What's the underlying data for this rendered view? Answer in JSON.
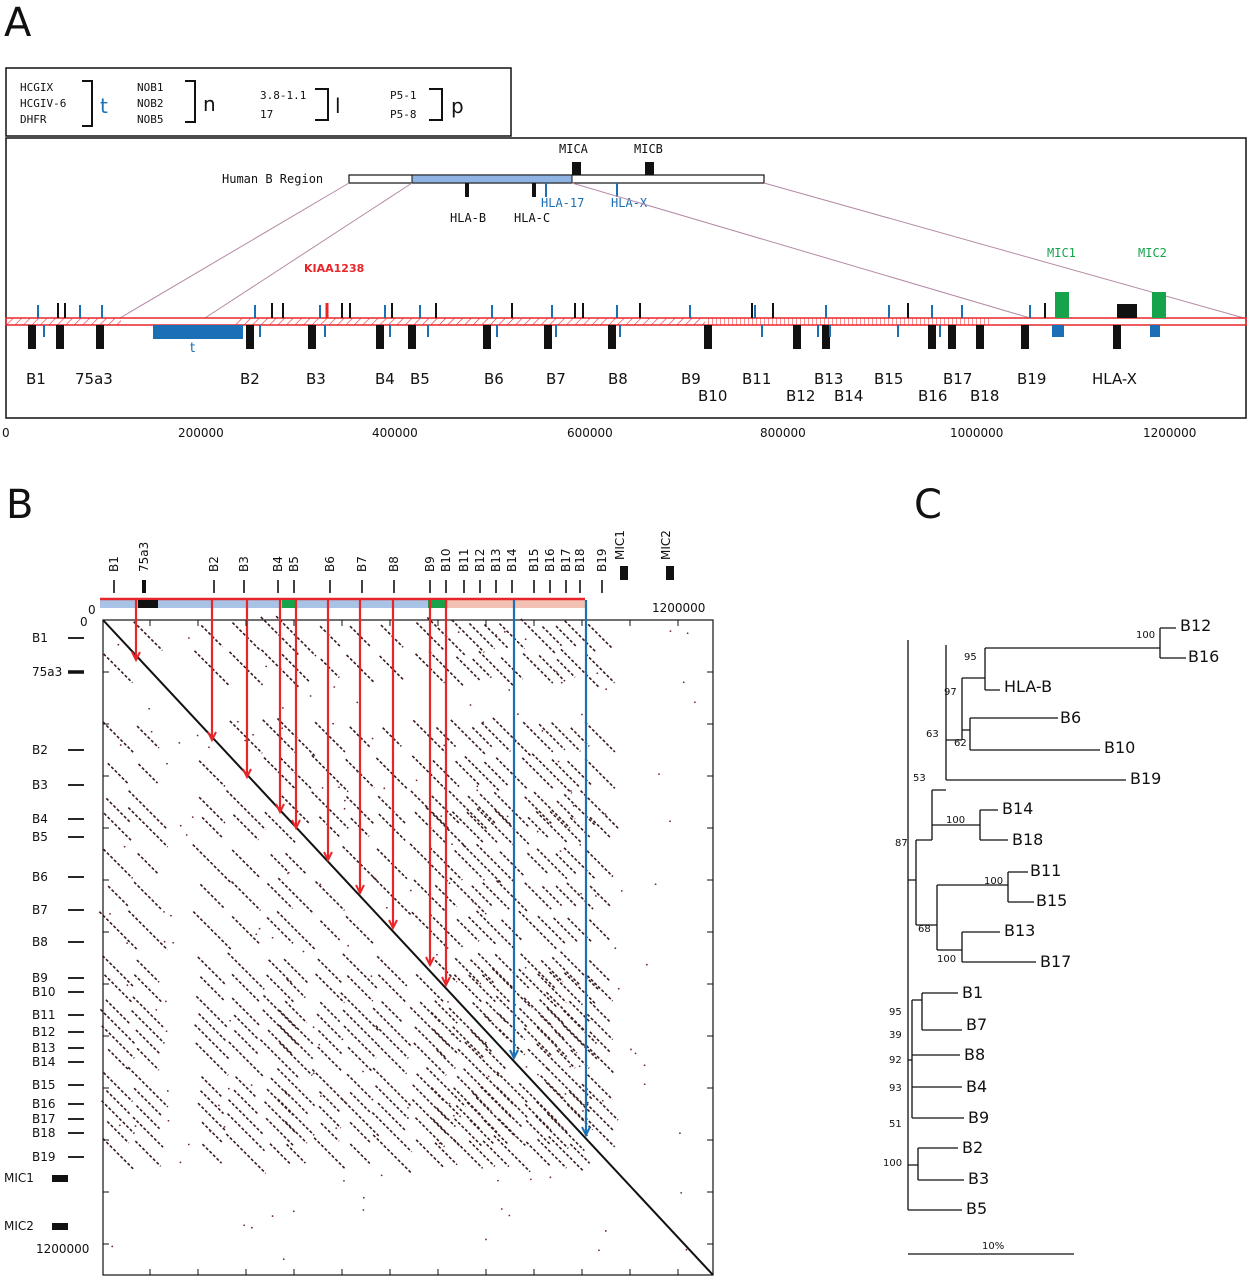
{
  "panels": {
    "a": "A",
    "b": "B",
    "c": "C"
  },
  "colors": {
    "t": "#1a6fb5",
    "red": "#e8262a",
    "green": "#16a34a",
    "black": "#111111",
    "pink": "#c9a6b9",
    "dotplot_blue": "#1a6fb5"
  },
  "legend": {
    "t_items": [
      "HCGIX",
      "HCGIV-6",
      "DHFR"
    ],
    "t_symbol": "t",
    "n_items": [
      "NOB1",
      "NOB2",
      "NOB5"
    ],
    "n_symbol": "n",
    "l_items": [
      "3.8-1.1",
      "17"
    ],
    "l_symbol": "l",
    "p_items": [
      "P5-1",
      "P5-8"
    ],
    "p_symbol": "p"
  },
  "human_region": {
    "title": "Human B Region",
    "genes_top": [
      "MICA",
      "MICB"
    ],
    "genes_black": [
      "HLA-B",
      "HLA-C"
    ],
    "genes_blue": [
      "HLA-17",
      "HLA-X"
    ]
  },
  "chicken_map": {
    "kiaa": "KIAA1238",
    "mic": [
      "MIC1",
      "MIC2"
    ],
    "blocks_row1": [
      "B1",
      "75a3",
      "B2",
      "B3",
      "B4",
      "B5",
      "B6",
      "B7",
      "B8",
      "B9",
      "B11",
      "B13",
      "B15",
      "B17",
      "B19",
      "HLA-X"
    ],
    "blocks_row2": [
      "B10",
      "B12",
      "B14",
      "B16",
      "B18"
    ],
    "t_label": "t"
  },
  "axis_a": {
    "ticks": [
      "0",
      "200000",
      "400000",
      "600000",
      "800000",
      "1000000",
      "1200000"
    ]
  },
  "dotplot": {
    "top_labels": [
      "B1",
      "75a3",
      "B2",
      "B3",
      "B4",
      "B5",
      "B6",
      "B7",
      "B8",
      "B9",
      "B10",
      "B11",
      "B12",
      "B13",
      "B14",
      "B15",
      "B16",
      "B17",
      "B18",
      "B19",
      "MIC1",
      "MIC2"
    ],
    "left_labels": [
      "B1",
      "75a3",
      "B2",
      "B3",
      "B4",
      "B5",
      "B6",
      "B7",
      "B8",
      "B9",
      "B10",
      "B11",
      "B12",
      "B13",
      "B14",
      "B15",
      "B16",
      "B17",
      "B18",
      "B19",
      "MIC1",
      "MIC2"
    ],
    "start": "0",
    "start_left": "0",
    "end_top": "1200000",
    "end_left": "1200000"
  },
  "tree": {
    "scale": "10%",
    "leaves": [
      "B12",
      "B16",
      "HLA-B",
      "B6",
      "B10",
      "B19",
      "B14",
      "B18",
      "B11",
      "B15",
      "B13",
      "B17",
      "B1",
      "B7",
      "B8",
      "B4",
      "B9",
      "B2",
      "B3",
      "B5"
    ],
    "bootstrap": [
      "100",
      "95",
      "97",
      "63",
      "62",
      "53",
      "100",
      "87",
      "100",
      "68",
      "100",
      "95",
      "39",
      "92",
      "93",
      "51",
      "100"
    ]
  }
}
